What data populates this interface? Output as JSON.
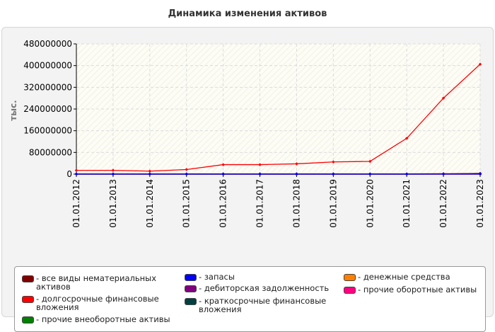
{
  "title": "Динамика изменения активов",
  "chart_data": {
    "type": "line",
    "title": "Динамика изменения активов",
    "ylabel": "тыс.",
    "xlabel": "",
    "ylim": [
      0,
      480000000
    ],
    "yticks": [
      0,
      80000000,
      160000000,
      240000000,
      320000000,
      400000000,
      480000000
    ],
    "ytick_labels": [
      "0",
      "80000000",
      "160000000",
      "240000000",
      "320000000",
      "400000000",
      "480000000"
    ],
    "categories": [
      "01.01.2012",
      "01.01.2013",
      "01.01.2014",
      "01.01.2015",
      "01.01.2016",
      "01.01.2017",
      "01.01.2018",
      "01.01.2019",
      "01.01.2020",
      "01.01.2021",
      "01.01.2022",
      "01.01.2023"
    ],
    "grid": true,
    "legend_position": "bottom",
    "series": [
      {
        "name": "все виды нематериальных активов",
        "color": "#800000",
        "values": [
          0,
          0,
          0,
          0,
          0,
          0,
          0,
          0,
          0,
          0,
          0,
          0
        ]
      },
      {
        "name": "долгосрочные финансовые вложения",
        "color": "#ff0000",
        "values": [
          14000000,
          14000000,
          11000000,
          17000000,
          35000000,
          35000000,
          38000000,
          45000000,
          47000000,
          132000000,
          280000000,
          405000000
        ]
      },
      {
        "name": "прочие внеоборотные активы",
        "color": "#008000",
        "values": [
          0,
          0,
          0,
          0,
          0,
          0,
          0,
          0,
          0,
          0,
          0,
          0
        ]
      },
      {
        "name": "запасы",
        "color": "#0000ff",
        "values": [
          500000,
          500000,
          500000,
          500000,
          500000,
          500000,
          500000,
          500000,
          500000,
          500000,
          500000,
          500000
        ]
      },
      {
        "name": "дебиторская задолженность",
        "color": "#800080",
        "values": [
          1000000,
          1000000,
          1000000,
          1000000,
          1000000,
          1000000,
          1000000,
          1000000,
          1000000,
          1000000,
          1500000,
          2000000
        ]
      },
      {
        "name": "краткосрочные финансовые вложения",
        "color": "#004040",
        "values": [
          0,
          0,
          0,
          0,
          0,
          0,
          0,
          0,
          0,
          0,
          500000,
          3000000
        ]
      },
      {
        "name": "денежные средства",
        "color": "#ff8000",
        "values": [
          0,
          0,
          0,
          0,
          0,
          0,
          0,
          0,
          0,
          0,
          0,
          0
        ]
      },
      {
        "name": "прочие оборотные активы",
        "color": "#ff0080",
        "values": [
          0,
          0,
          0,
          0,
          0,
          0,
          0,
          0,
          0,
          0,
          0,
          0
        ]
      }
    ]
  }
}
